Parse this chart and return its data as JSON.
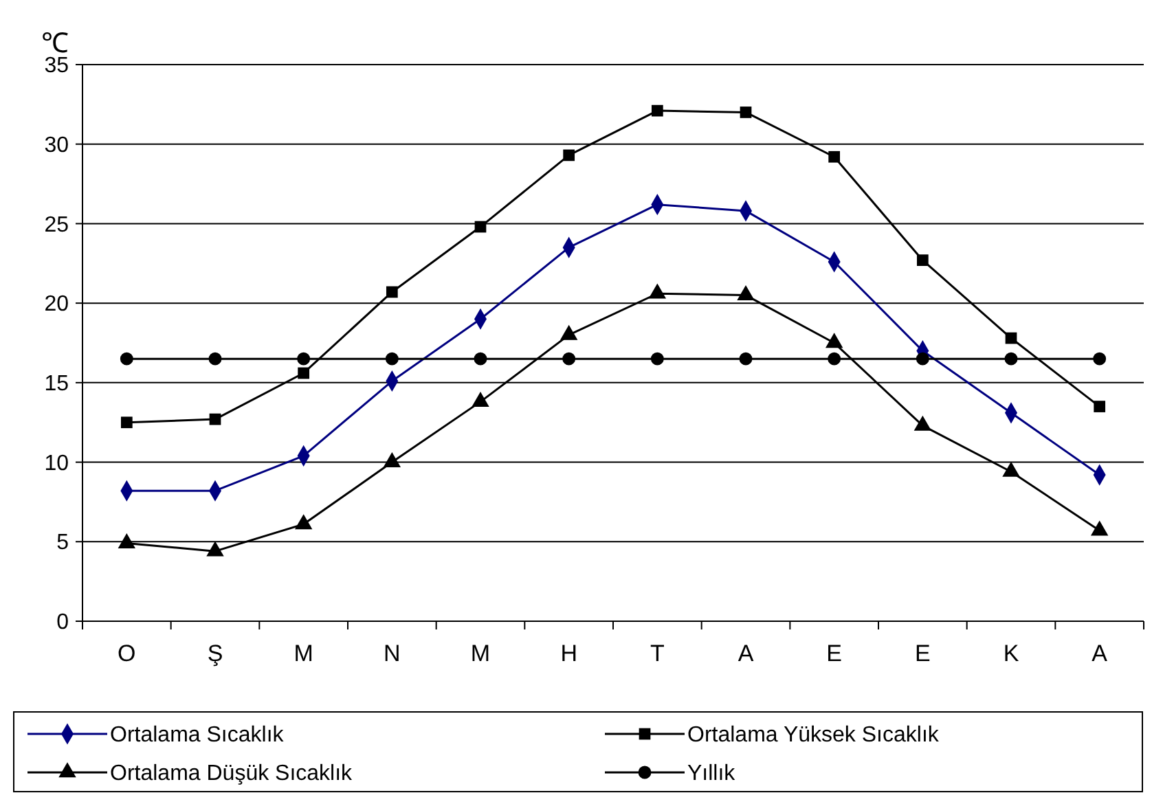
{
  "chart_data": {
    "type": "line",
    "ylabel": "℃",
    "categories": [
      "O",
      "Ş",
      "M",
      "N",
      "M",
      "H",
      "T",
      "A",
      "E",
      "E",
      "K",
      "A"
    ],
    "series": [
      {
        "name": "Ortalama Sıcaklık",
        "color": "#000080",
        "marker": "diamond",
        "values": [
          8.2,
          8.2,
          10.4,
          15.1,
          19.0,
          23.5,
          26.2,
          25.8,
          22.6,
          17.0,
          13.1,
          9.2
        ]
      },
      {
        "name": "Ortalama Yüksek Sıcaklık",
        "color": "#000000",
        "marker": "square",
        "values": [
          12.5,
          12.7,
          15.6,
          20.7,
          24.8,
          29.3,
          32.1,
          32.0,
          29.2,
          22.7,
          17.8,
          13.5
        ]
      },
      {
        "name": "Ortalama Düşük Sıcaklık",
        "color": "#000000",
        "marker": "triangle",
        "values": [
          4.9,
          4.4,
          6.1,
          10.0,
          13.8,
          18.0,
          20.6,
          20.5,
          17.5,
          12.3,
          9.4,
          5.7
        ]
      },
      {
        "name": "Yıllık",
        "color": "#000000",
        "marker": "circle",
        "values": [
          16.5,
          16.5,
          16.5,
          16.5,
          16.5,
          16.5,
          16.5,
          16.5,
          16.5,
          16.5,
          16.5,
          16.5
        ]
      }
    ],
    "ylim": [
      0,
      35
    ],
    "yticks": [
      0,
      5,
      10,
      15,
      20,
      25,
      30,
      35
    ],
    "grid": "y",
    "legend": "bottom",
    "line_style": "solid"
  }
}
